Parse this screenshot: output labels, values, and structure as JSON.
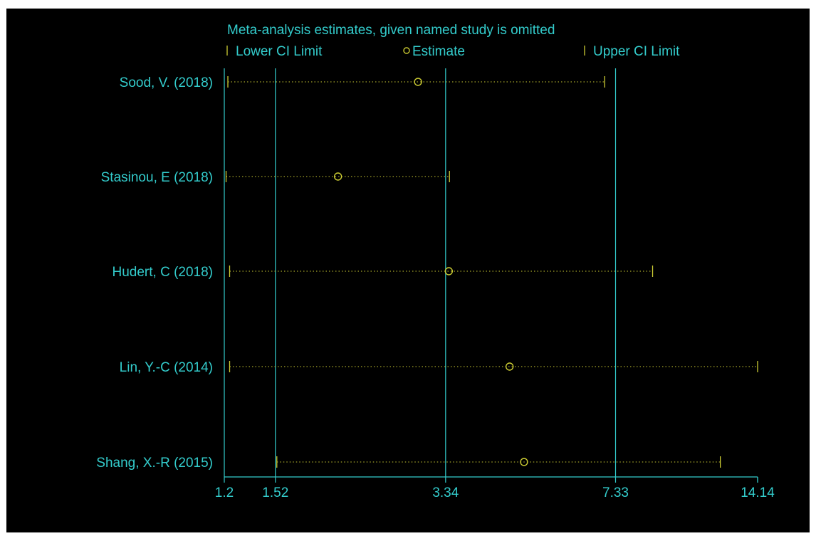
{
  "chart_data": {
    "type": "forest",
    "title": "Meta-analysis estimates, given named study is omitted",
    "legend": [
      "Lower CI Limit",
      "Estimate",
      "Upper CI Limit"
    ],
    "legend_position": "top",
    "x_scale": "log",
    "xlim": [
      1.2,
      14.14
    ],
    "x_ticks": [
      1.2,
      1.52,
      3.34,
      7.33,
      14.14
    ],
    "x_tick_labels": [
      "1.2",
      "1.52",
      "3.34",
      "7.33",
      "14.14"
    ],
    "reference_lines": [
      1.52,
      3.34,
      7.33
    ],
    "studies": [
      {
        "name": "Sood, V. (2018)",
        "lower": 1.22,
        "estimate": 2.94,
        "upper": 6.97
      },
      {
        "name": "Stasinou, E (2018)",
        "lower": 1.21,
        "estimate": 2.03,
        "upper": 3.4
      },
      {
        "name": "Hudert, C (2018)",
        "lower": 1.23,
        "estimate": 3.39,
        "upper": 8.7
      },
      {
        "name": "Lin, Y.-C (2014)",
        "lower": 1.23,
        "estimate": 4.49,
        "upper": 14.14
      },
      {
        "name": "Shang, X.-R (2015)",
        "lower": 1.53,
        "estimate": 4.8,
        "upper": 11.9
      }
    ],
    "colors": {
      "background": "#000000",
      "text": "#33cccc",
      "axis": "#33cccc",
      "markers": "#cccc33"
    }
  }
}
